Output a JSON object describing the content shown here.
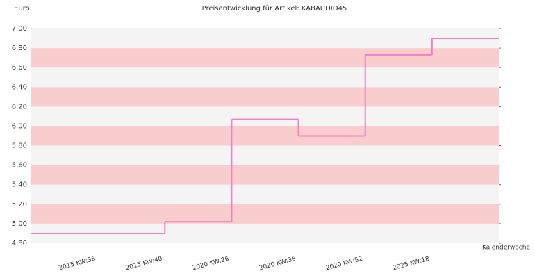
{
  "chart_data": {
    "type": "step-line",
    "title": "Preisentwicklung für Artikel: KABAUDIO45",
    "y_label": "Euro",
    "x_label": "Kalenderwoche",
    "categories": [
      "2015 KW:36",
      "2015 KW:40",
      "2020 KW:26",
      "2020 KW:36",
      "2020 KW:52",
      "2025 KW:18",
      null
    ],
    "values": [
      4.9,
      4.9,
      5.02,
      6.07,
      5.9,
      6.73,
      6.9
    ],
    "color": "#f07fc0",
    "ylim": [
      4.8,
      7.0
    ],
    "yticks": [
      {
        "value": 4.8,
        "label": "4.80"
      },
      {
        "value": 5.0,
        "label": "5.00"
      },
      {
        "value": 5.2,
        "label": "5.20"
      },
      {
        "value": 5.4,
        "label": "5.40"
      },
      {
        "value": 5.6,
        "label": "5.60"
      },
      {
        "value": 5.8,
        "label": "5.80"
      },
      {
        "value": 6.0,
        "label": "6.00"
      },
      {
        "value": 6.2,
        "label": "6.20"
      },
      {
        "value": 6.4,
        "label": "6.40"
      },
      {
        "value": 6.6,
        "label": "6.60"
      },
      {
        "value": 6.8,
        "label": "6.80"
      },
      {
        "value": 7.0,
        "label": "7.00"
      }
    ],
    "band_colors": [
      "#f4f4f4",
      "#f9cdcd"
    ]
  }
}
